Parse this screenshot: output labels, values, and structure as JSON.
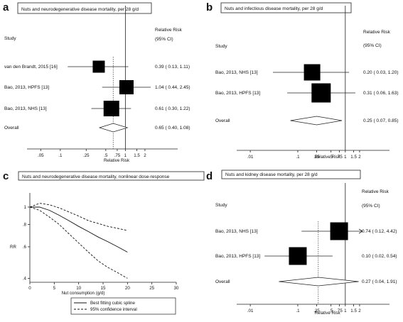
{
  "chart_data": [
    {
      "type": "forest",
      "panel": "a",
      "title": "Nuts and neurodegenerative disease mortality, per 28 g/d",
      "col_study": "Study",
      "col_rr": "Relative Risk",
      "col_ci": "(95% CI)",
      "xlabel": "Relative Risk",
      "xscale": "log",
      "xticks": [
        ".05",
        ".1",
        ".25",
        ".5",
        ".75",
        "1",
        "1.5",
        "2"
      ],
      "xtick_values": [
        0.05,
        0.1,
        0.25,
        0.5,
        0.75,
        1,
        1.5,
        2
      ],
      "xlim": [
        0.03,
        2.45
      ],
      "studies": [
        {
          "label": "van den Brandt, 2015 [16]",
          "rr": 0.39,
          "lo": 0.13,
          "hi": 1.11,
          "text": "0.39 ( 0.13, 1.11)"
        },
        {
          "label": "Bao, 2013, HPFS [13]",
          "rr": 1.04,
          "lo": 0.44,
          "hi": 2.45,
          "text": "1.04 ( 0.44, 2.45)"
        },
        {
          "label": "Bao, 2013, NHS [13]",
          "rr": 0.61,
          "lo": 0.3,
          "hi": 1.22,
          "text": "0.61 ( 0.30, 1.22)"
        }
      ],
      "overall": {
        "label": "Overall",
        "rr": 0.65,
        "lo": 0.4,
        "hi": 1.08,
        "text": "0.65 ( 0.40, 1.08)"
      }
    },
    {
      "type": "forest",
      "panel": "b",
      "title": "Nuts and infectious disease mortality, per 28 g/d",
      "col_study": "Study",
      "col_rr": "Relative Risk",
      "col_ci": "(95% CI)",
      "xlabel": "Relative Risk",
      "xscale": "log",
      "xticks": [
        ".01",
        ".1",
        ".25",
        ".5",
        ".75",
        "1",
        "1.5",
        "2"
      ],
      "xtick_values": [
        0.01,
        0.1,
        0.25,
        0.5,
        0.75,
        1,
        1.5,
        2
      ],
      "xlim": [
        0.005,
        2.3
      ],
      "studies": [
        {
          "label": "Bao, 2013, NHS [13]",
          "rr": 0.2,
          "lo": 0.03,
          "hi": 1.2,
          "text": "0.20 ( 0.03, 1.20)"
        },
        {
          "label": "Bao, 2013, HPFS [13]",
          "rr": 0.31,
          "lo": 0.06,
          "hi": 1.63,
          "text": "0.31 ( 0.06, 1.63)"
        }
      ],
      "overall": {
        "label": "Overall",
        "rr": 0.25,
        "lo": 0.07,
        "hi": 0.85,
        "text": "0.25 ( 0.07, 0.85)"
      }
    },
    {
      "type": "line",
      "panel": "c",
      "title": "Nuts and neurodegenerative disease mortality, nonlinear dose-response",
      "xlabel": "Nut consumption (g/d)",
      "ylabel": "RR",
      "xlim": [
        0,
        30
      ],
      "xticks": [
        "0",
        "5",
        "10",
        "15",
        "20",
        "25",
        "30"
      ],
      "xtick_values": [
        0,
        5,
        10,
        15,
        20,
        25,
        30
      ],
      "yscale": "log",
      "ylim": [
        0.38,
        1.2
      ],
      "yticks": [
        ".4",
        ".6",
        ".8",
        "1"
      ],
      "ytick_values": [
        0.4,
        0.6,
        0.8,
        1
      ],
      "series": [
        {
          "name": "Best fitting cubic spline",
          "style": "solid",
          "x": [
            0,
            2,
            4,
            6,
            8,
            10,
            12,
            14,
            16,
            18,
            20
          ],
          "y": [
            1.0,
            1.0,
            0.96,
            0.9,
            0.84,
            0.78,
            0.73,
            0.68,
            0.64,
            0.6,
            0.56
          ]
        },
        {
          "name": "95% confidence interval",
          "style": "dashed",
          "x": [
            0,
            2,
            4,
            6,
            8,
            10,
            12,
            14,
            16,
            18,
            20
          ],
          "y": [
            1.0,
            1.05,
            1.03,
            0.99,
            0.94,
            0.89,
            0.84,
            0.81,
            0.78,
            0.76,
            0.74
          ]
        },
        {
          "name": "",
          "style": "dashed",
          "x": [
            0,
            2,
            4,
            6,
            8,
            10,
            12,
            14,
            16,
            18,
            20
          ],
          "y": [
            1.0,
            0.96,
            0.88,
            0.8,
            0.71,
            0.63,
            0.56,
            0.5,
            0.46,
            0.43,
            0.4
          ]
        }
      ],
      "legend": "bottom-right"
    },
    {
      "type": "forest",
      "panel": "d",
      "title": "Nuts and kidney disease mortality, per 28 g/d",
      "col_study": "Study",
      "col_rr": "Relative Risk",
      "col_ci": "(95% CI)",
      "xlabel": "Relative Risk",
      "xscale": "log",
      "xticks": [
        ".01",
        ".1",
        ".25",
        ".5",
        ".75",
        "1",
        "1.5",
        "2"
      ],
      "xtick_values": [
        0.01,
        0.1,
        0.25,
        0.5,
        0.75,
        1,
        1.5,
        2
      ],
      "xlim": [
        0.005,
        2.3
      ],
      "studies": [
        {
          "label": "Bao, 2013, NHS [13]",
          "rr": 0.74,
          "lo": 0.12,
          "hi": 4.42,
          "text": "0.74 ( 0.12, 4.42)"
        },
        {
          "label": "Bao, 2013, HPFS [13]",
          "rr": 0.1,
          "lo": 0.02,
          "hi": 0.54,
          "text": "0.10 ( 0.02, 0.54)"
        }
      ],
      "overall": {
        "label": "Overall",
        "rr": 0.27,
        "lo": 0.04,
        "hi": 1.91,
        "text": "0.27 ( 0.04, 1.91)"
      }
    }
  ]
}
